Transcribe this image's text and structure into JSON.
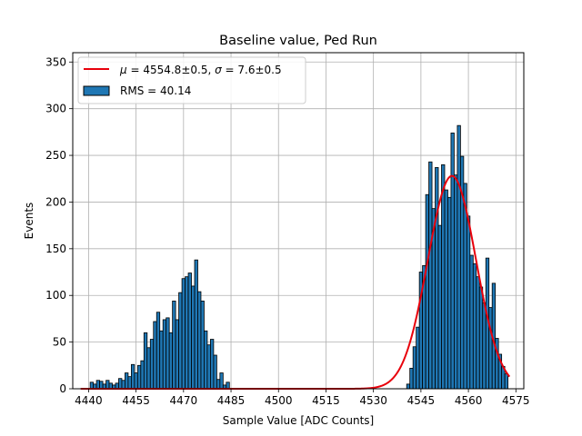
{
  "chart_data": {
    "type": "bar",
    "title": "Baseline value, Ped Run",
    "xlabel": "Sample Value [ADC Counts]",
    "ylabel": "Events",
    "xlim": [
      4435.0,
      4577.5
    ],
    "ylim": [
      0,
      360
    ],
    "xticks": [
      4440,
      4455,
      4470,
      4485,
      4500,
      4515,
      4530,
      4545,
      4560,
      4575
    ],
    "yticks": [
      0,
      50,
      100,
      150,
      200,
      250,
      300,
      350
    ],
    "grid": true,
    "legend_position": "top-left",
    "colors": {
      "bars": "#1f77b4",
      "bar_edge": "#000000",
      "fit": "#e8000b",
      "grid": "#b0b0b0"
    },
    "series": [
      {
        "name": "RMS = 40.14",
        "type": "histogram",
        "bin_width": 1,
        "bins": [
          {
            "x": 4441,
            "y": 7
          },
          {
            "x": 4442,
            "y": 5
          },
          {
            "x": 4443,
            "y": 9
          },
          {
            "x": 4444,
            "y": 8
          },
          {
            "x": 4445,
            "y": 5
          },
          {
            "x": 4446,
            "y": 9
          },
          {
            "x": 4447,
            "y": 6
          },
          {
            "x": 4448,
            "y": 4
          },
          {
            "x": 4449,
            "y": 6
          },
          {
            "x": 4450,
            "y": 11
          },
          {
            "x": 4451,
            "y": 9
          },
          {
            "x": 4452,
            "y": 17
          },
          {
            "x": 4453,
            "y": 13
          },
          {
            "x": 4454,
            "y": 26
          },
          {
            "x": 4455,
            "y": 17
          },
          {
            "x": 4456,
            "y": 25
          },
          {
            "x": 4457,
            "y": 30
          },
          {
            "x": 4458,
            "y": 60
          },
          {
            "x": 4459,
            "y": 44
          },
          {
            "x": 4460,
            "y": 53
          },
          {
            "x": 4461,
            "y": 72
          },
          {
            "x": 4462,
            "y": 82
          },
          {
            "x": 4463,
            "y": 62
          },
          {
            "x": 4464,
            "y": 74
          },
          {
            "x": 4465,
            "y": 76
          },
          {
            "x": 4466,
            "y": 60
          },
          {
            "x": 4467,
            "y": 94
          },
          {
            "x": 4468,
            "y": 74
          },
          {
            "x": 4469,
            "y": 103
          },
          {
            "x": 4470,
            "y": 118
          },
          {
            "x": 4471,
            "y": 120
          },
          {
            "x": 4472,
            "y": 124
          },
          {
            "x": 4473,
            "y": 110
          },
          {
            "x": 4474,
            "y": 138
          },
          {
            "x": 4475,
            "y": 104
          },
          {
            "x": 4476,
            "y": 94
          },
          {
            "x": 4477,
            "y": 62
          },
          {
            "x": 4478,
            "y": 47
          },
          {
            "x": 4479,
            "y": 53
          },
          {
            "x": 4480,
            "y": 36
          },
          {
            "x": 4481,
            "y": 10
          },
          {
            "x": 4482,
            "y": 17
          },
          {
            "x": 4483,
            "y": 4
          },
          {
            "x": 4484,
            "y": 7
          },
          {
            "x": 4541,
            "y": 5
          },
          {
            "x": 4542,
            "y": 22
          },
          {
            "x": 4543,
            "y": 45
          },
          {
            "x": 4544,
            "y": 66
          },
          {
            "x": 4545,
            "y": 125
          },
          {
            "x": 4546,
            "y": 132
          },
          {
            "x": 4547,
            "y": 208
          },
          {
            "x": 4548,
            "y": 243
          },
          {
            "x": 4549,
            "y": 193
          },
          {
            "x": 4550,
            "y": 237
          },
          {
            "x": 4551,
            "y": 175
          },
          {
            "x": 4552,
            "y": 240
          },
          {
            "x": 4553,
            "y": 213
          },
          {
            "x": 4554,
            "y": 205
          },
          {
            "x": 4555,
            "y": 274
          },
          {
            "x": 4556,
            "y": 229
          },
          {
            "x": 4557,
            "y": 282
          },
          {
            "x": 4558,
            "y": 249
          },
          {
            "x": 4559,
            "y": 220
          },
          {
            "x": 4560,
            "y": 185
          },
          {
            "x": 4561,
            "y": 143
          },
          {
            "x": 4562,
            "y": 134
          },
          {
            "x": 4563,
            "y": 120
          },
          {
            "x": 4564,
            "y": 109
          },
          {
            "x": 4565,
            "y": 92
          },
          {
            "x": 4566,
            "y": 140
          },
          {
            "x": 4567,
            "y": 87
          },
          {
            "x": 4568,
            "y": 113
          },
          {
            "x": 4569,
            "y": 54
          },
          {
            "x": 4570,
            "y": 37
          },
          {
            "x": 4571,
            "y": 24
          },
          {
            "x": 4572,
            "y": 16
          }
        ]
      },
      {
        "name": "$\\mu=4554.8{\\pm}0.5$, $\\sigma=7.6{\\pm}0.5$",
        "legend_parts": {
          "mu_symbol": "μ",
          "mu_value": " = 4554.8±0.5, ",
          "sigma_symbol": "σ",
          "sigma_value": " = 7.6±0.5"
        },
        "type": "line",
        "fit": "gaussian",
        "mu": 4554.8,
        "sigma": 7.6,
        "amplitude": 228,
        "x_range": [
          4437.5,
          4573
        ]
      }
    ]
  }
}
